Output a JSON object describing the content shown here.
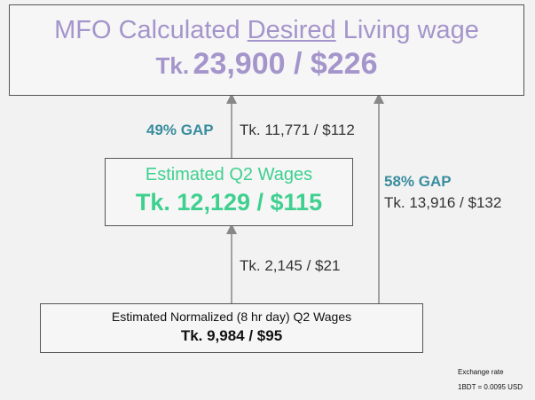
{
  "top_box": {
    "title": {
      "before": "MFO Calculated",
      "emphasis": "Desired",
      "after": "Living wage"
    },
    "amount": {
      "currency": "Tk.",
      "value": "23,900 / $226"
    }
  },
  "middle_box": {
    "title": "Estimated Q2 Wages",
    "amount": "Tk. 12,129 / $115"
  },
  "bottom_box": {
    "title": "Estimated Normalized (8 hr day) Q2 Wages",
    "amount": "Tk. 9,984 / $95"
  },
  "gap_upper": {
    "label": "49% GAP",
    "amount": "Tk. 11,771 / $112"
  },
  "gap_total": {
    "label": "58% GAP",
    "amount": "Tk. 13,916 / $132"
  },
  "gap_lower": {
    "amount": "Tk. 2,145 / $21"
  },
  "exchange": {
    "title": "Exchange rate",
    "rate": "1BDT = 0.0095 USD"
  }
}
